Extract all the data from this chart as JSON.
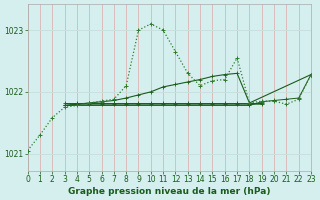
{
  "title": "Graphe pression niveau de la mer (hPa)",
  "bg_color": "#d5efef",
  "red_grid_color": "#ddaaaa",
  "white_grid_color": "#c8e0e0",
  "line_dark": "#1a5c1a",
  "line_bright": "#2e7d2e",
  "xlim": [
    0,
    23
  ],
  "ylim": [
    1020.72,
    1023.42
  ],
  "yticks": [
    1021,
    1022,
    1023
  ],
  "xticks": [
    0,
    1,
    2,
    3,
    4,
    5,
    6,
    7,
    8,
    9,
    10,
    11,
    12,
    13,
    14,
    15,
    16,
    17,
    18,
    19,
    20,
    21,
    22,
    23
  ],
  "tick_fontsize": 5.5,
  "label_fontsize": 6.5,
  "series_peaked_x": [
    0,
    1,
    2,
    3,
    4,
    5,
    6,
    7,
    8,
    9,
    10,
    11,
    12,
    13,
    14,
    15,
    16,
    17,
    18,
    19,
    20,
    21,
    22,
    23
  ],
  "series_peaked_y": [
    1021.05,
    1021.3,
    1021.58,
    1021.75,
    1021.78,
    1021.82,
    1021.85,
    1021.88,
    1022.1,
    1023.0,
    1023.1,
    1023.0,
    1022.65,
    1022.3,
    1022.1,
    1022.18,
    1022.2,
    1022.55,
    1021.82,
    1021.85,
    1021.85,
    1021.8,
    1021.88,
    1022.28
  ],
  "series_diag_x": [
    3,
    4,
    5,
    6,
    7,
    8,
    9,
    10,
    11,
    12,
    13,
    14,
    15,
    16,
    17,
    18,
    23
  ],
  "series_diag_y": [
    1021.78,
    1021.8,
    1021.82,
    1021.84,
    1021.86,
    1021.9,
    1021.95,
    1022.0,
    1022.08,
    1022.12,
    1022.16,
    1022.2,
    1022.25,
    1022.28,
    1022.3,
    1021.82,
    1022.28
  ],
  "series_flat1_x": [
    3,
    4,
    5,
    6,
    7,
    8,
    9,
    10,
    11,
    12,
    13,
    14,
    15,
    16,
    17,
    18,
    19
  ],
  "series_flat1_y": [
    1021.78,
    1021.8,
    1021.8,
    1021.8,
    1021.8,
    1021.8,
    1021.8,
    1021.8,
    1021.8,
    1021.8,
    1021.8,
    1021.8,
    1021.8,
    1021.8,
    1021.8,
    1021.8,
    1021.8
  ],
  "series_flat2_x": [
    3,
    4,
    5,
    6,
    7,
    8,
    9,
    10,
    11,
    12,
    13,
    14,
    15,
    16,
    17,
    18,
    19
  ],
  "series_flat2_y": [
    1021.82,
    1021.82,
    1021.82,
    1021.82,
    1021.82,
    1021.82,
    1021.82,
    1021.82,
    1021.82,
    1021.82,
    1021.82,
    1021.82,
    1021.82,
    1021.82,
    1021.82,
    1021.82,
    1021.82
  ],
  "series_flat3_x": [
    3,
    18,
    19,
    20,
    21,
    22,
    23
  ],
  "series_flat3_y": [
    1021.78,
    1021.78,
    1021.84,
    1021.86,
    1021.88,
    1021.9,
    1022.28
  ]
}
